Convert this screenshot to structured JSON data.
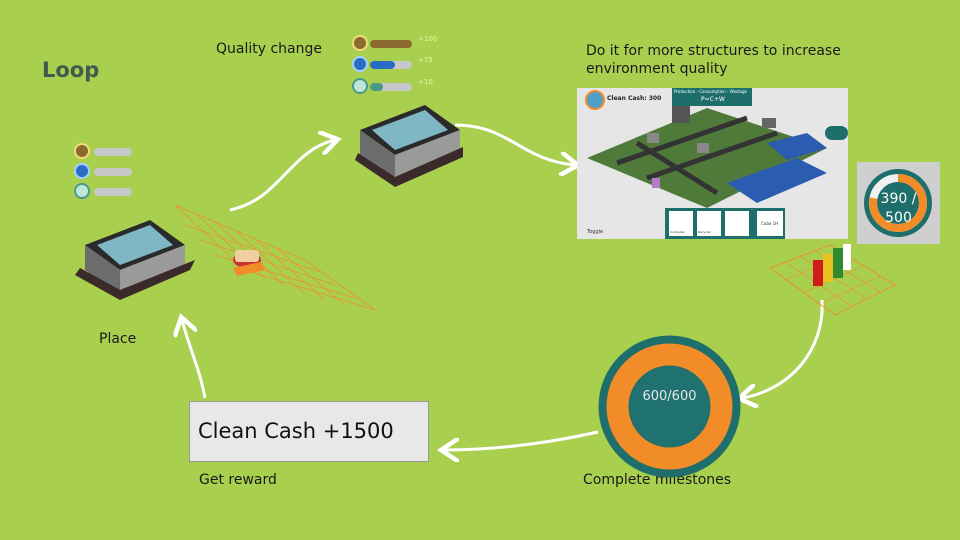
{
  "title": "Loop",
  "labels": {
    "quality_change": "Quality change",
    "do_more": "Do it for more structures to increase environment quality",
    "place": "Place",
    "get_reward": "Get reward",
    "complete_milestones": "Complete milestones"
  },
  "reward_box": {
    "text": "Clean Cash +1500"
  },
  "milestone_big": {
    "text": "600/600",
    "progress": 1.0
  },
  "milestone_small": {
    "line1": "390 /",
    "line2": "500",
    "progress": 0.78
  },
  "quality_bars": {
    "before": [
      {
        "icon": "soil-icon",
        "level": 0.0,
        "color": "#8a6a2e"
      },
      {
        "icon": "water-drop-icon",
        "level": 0.0,
        "color": "#2a6bc4"
      },
      {
        "icon": "air-recycle-icon",
        "level": 0.0,
        "color": "#4a9a8a"
      }
    ],
    "after": [
      {
        "icon": "soil-icon",
        "level": 1.0,
        "color": "#8a6a2e",
        "delta": "+100"
      },
      {
        "icon": "water-drop-icon",
        "level": 0.6,
        "color": "#2a6bc4",
        "delta": "+75"
      },
      {
        "icon": "air-recycle-icon",
        "level": 0.3,
        "color": "#4a9a8a",
        "delta": "+10"
      }
    ]
  },
  "game_screenshot": {
    "cash_label": "Clean Cash: 300",
    "header": "Production - Consumption - Wastage",
    "formula": "P=C+W",
    "toggle": "Toggle",
    "cards": [
      "Computer",
      "Recycler",
      "",
      "Cube 1H"
    ]
  },
  "colors": {
    "background": "#a9cf4f",
    "arrow": "#ffffff",
    "orange": "#f28c28",
    "teal_dark": "#1e6f6b",
    "teal_fill": "#1f7270"
  }
}
